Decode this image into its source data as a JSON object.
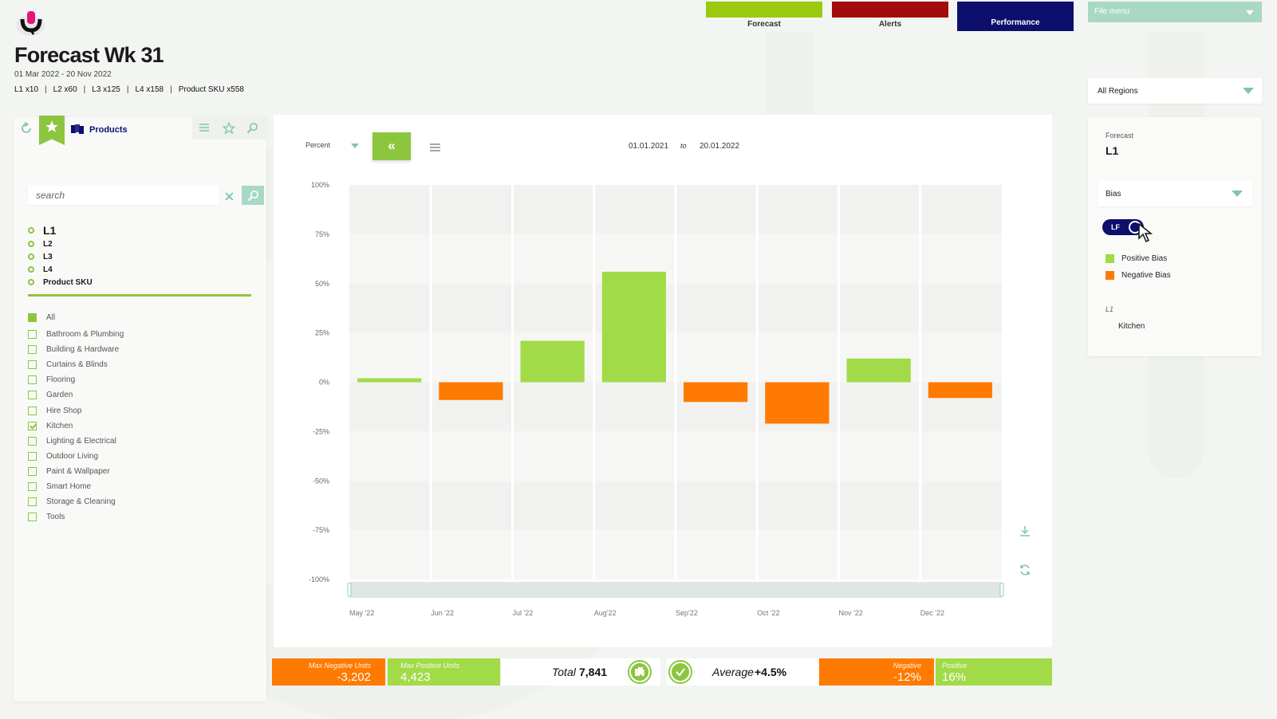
{
  "header": {
    "title": "Forecast Wk 31",
    "date_range": "01 Mar 2022 - 20 Nov 2022",
    "counts": [
      "L1 x10",
      "L2 x60",
      "L3 x125",
      "L4 x158",
      "Product SKU x558"
    ]
  },
  "nav": {
    "tabs": [
      {
        "label": "Forecast",
        "color": "#9bc90e"
      },
      {
        "label": "Alerts",
        "color": "#a30c0c"
      },
      {
        "label": "Performance",
        "color": "#0c0f6b"
      }
    ],
    "file_menu": "File menu"
  },
  "region_select": {
    "value": "All Regions"
  },
  "left_panel": {
    "products_label": "Products",
    "search_placeholder": "search",
    "levels": [
      "L1",
      "L2",
      "L3",
      "L4",
      "Product SKU"
    ],
    "categories": [
      {
        "label": "All",
        "state": "filled"
      },
      {
        "label": "Bathroom & Plumbing",
        "state": "unchecked"
      },
      {
        "label": "Building & Hardware",
        "state": "unchecked"
      },
      {
        "label": "Curtains & Blinds",
        "state": "unchecked"
      },
      {
        "label": "Flooring",
        "state": "unchecked"
      },
      {
        "label": "Garden",
        "state": "unchecked"
      },
      {
        "label": "Hire Shop",
        "state": "unchecked"
      },
      {
        "label": "Kitchen",
        "state": "checked"
      },
      {
        "label": "Lighting & Electrical",
        "state": "unchecked"
      },
      {
        "label": "Outdoor Living",
        "state": "unchecked"
      },
      {
        "label": "Paint & Wallpaper",
        "state": "unchecked"
      },
      {
        "label": "Smart Home",
        "state": "unchecked"
      },
      {
        "label": "Storage & Cleaning",
        "state": "unchecked"
      },
      {
        "label": "Tools",
        "state": "unchecked"
      }
    ]
  },
  "chart_toolbar": {
    "unit": "Percent",
    "collapse_glyph": "«",
    "date_from": "01.01.2021",
    "to_label": "to",
    "date_to": "20.01.2022"
  },
  "chart_data": {
    "type": "bar",
    "categories": [
      "May '22",
      "Jun '22",
      "Jul '22",
      "Aug'22",
      "Sep'22",
      "Oct '22",
      "Nov '22",
      "Dec '22"
    ],
    "values": [
      2,
      -9,
      21,
      56,
      -10,
      -21,
      12,
      -8
    ],
    "y_ticks": [
      "100%",
      "75%",
      "50%",
      "25%",
      "0%",
      "-25%",
      "-50%",
      "-75%",
      "-100%"
    ],
    "ylim": [
      -100,
      100
    ],
    "positive_color": "#a1db47",
    "negative_color": "#ff7a00"
  },
  "stats": {
    "max_negative_units": {
      "label": "Max Negative Units",
      "value": "-3,202"
    },
    "max_positive_units": {
      "label": "Max Positive Units",
      "value": "4,423"
    },
    "total": {
      "label": "Total",
      "value": "7,841"
    },
    "average": {
      "label": "Average",
      "value": "+4.5%"
    },
    "negative": {
      "label": "Negative",
      "value": "-12%"
    },
    "positive": {
      "label": "Positive",
      "value": "16%"
    }
  },
  "right_panel": {
    "forecast_label": "Forecast",
    "level": "L1",
    "metric": "Bias",
    "toggle_label": "LF",
    "legend": [
      {
        "label": "Positive Bias",
        "color": "#a1db47"
      },
      {
        "label": "Negative Bias",
        "color": "#ff7a00"
      }
    ],
    "selection_level": "L1",
    "selection_value": "Kitchen"
  }
}
